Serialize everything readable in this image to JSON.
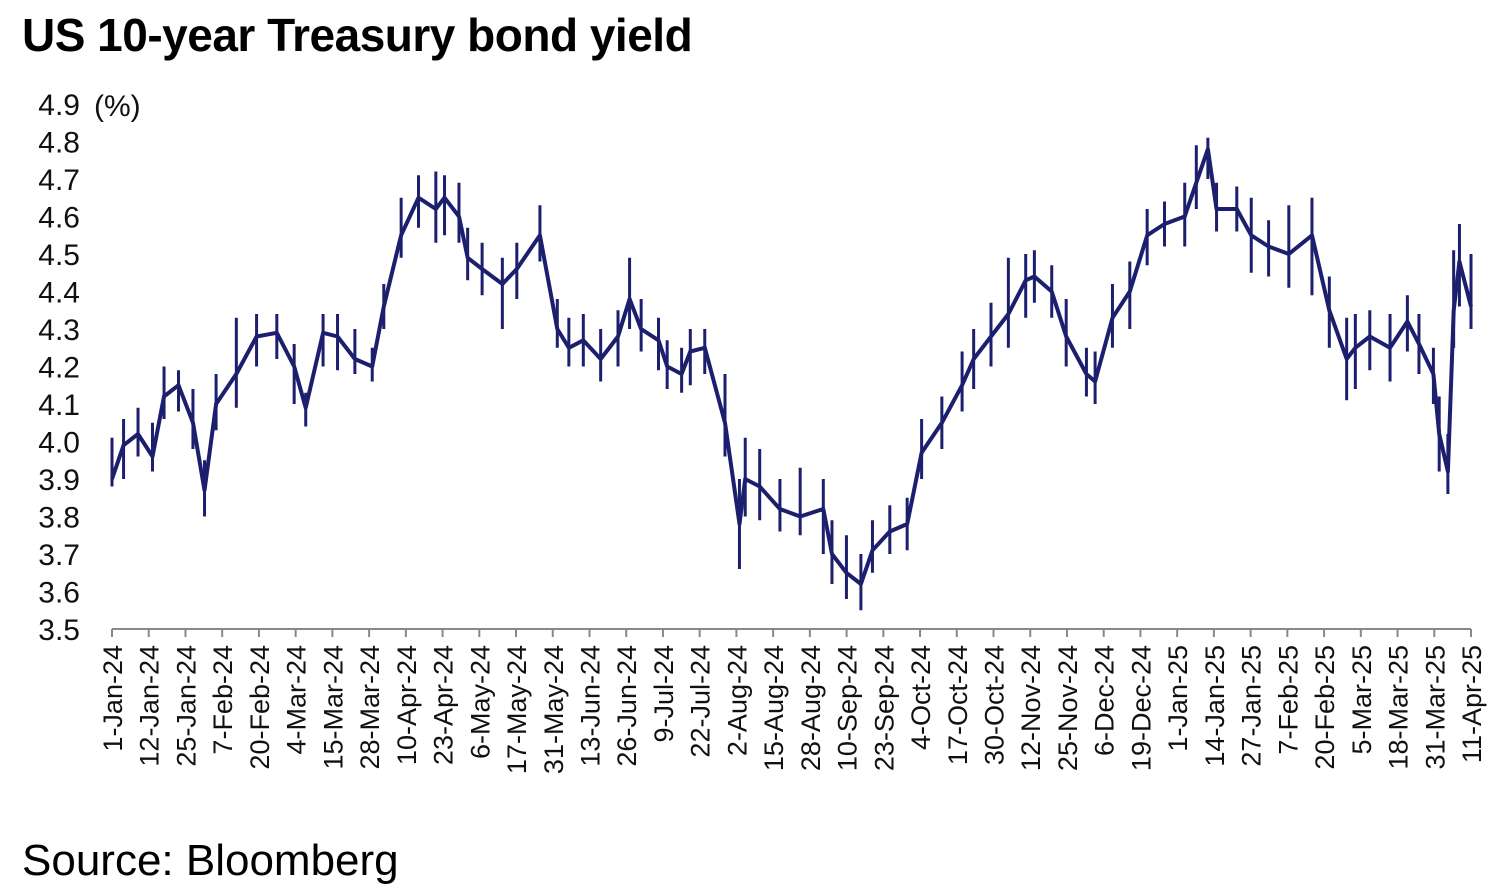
{
  "title": "US 10-year Treasury bond yield",
  "source": "Source: Bloomberg",
  "chart_data": {
    "type": "line",
    "style": "hi-lo daily bars",
    "title": "US 10-year Treasury bond yield",
    "ylabel": "(%)",
    "xlabel": "",
    "ylim": [
      3.5,
      4.9
    ],
    "yticks": [
      "3.5",
      "3.6",
      "3.7",
      "3.8",
      "3.9",
      "4.0",
      "4.1",
      "4.2",
      "4.3",
      "4.4",
      "4.5",
      "4.6",
      "4.7",
      "4.8",
      "4.9"
    ],
    "xlim": [
      "2024-01-01",
      "2025-04-15"
    ],
    "xtick_labels": [
      "1-Jan-24",
      "12-Jan-24",
      "25-Jan-24",
      "7-Feb-24",
      "20-Feb-24",
      "4-Mar-24",
      "15-Mar-24",
      "28-Mar-24",
      "10-Apr-24",
      "23-Apr-24",
      "6-May-24",
      "17-May-24",
      "31-May-24",
      "13-Jun-24",
      "26-Jun-24",
      "9-Jul-24",
      "22-Jul-24",
      "2-Aug-24",
      "15-Aug-24",
      "28-Aug-24",
      "10-Sep-24",
      "23-Sep-24",
      "4-Oct-24",
      "17-Oct-24",
      "30-Oct-24",
      "12-Nov-24",
      "25-Nov-24",
      "6-Dec-24",
      "19-Dec-24",
      "1-Jan-25",
      "14-Jan-25",
      "27-Jan-25",
      "7-Feb-25",
      "20-Feb-25",
      "5-Mar-25",
      "18-Mar-25",
      "31-Mar-25",
      "11-Apr-25"
    ],
    "grid": false,
    "legend": "none",
    "colors": {
      "series": "#1c1f6e",
      "axis": "#888888",
      "text": "#111111"
    },
    "series": [
      {
        "x": [
          "2024-01-01",
          "2024-01-05",
          "2024-01-10",
          "2024-01-15",
          "2024-01-19",
          "2024-01-24",
          "2024-01-29",
          "2024-02-02",
          "2024-02-06",
          "2024-02-13",
          "2024-02-20",
          "2024-02-27",
          "2024-03-04",
          "2024-03-08",
          "2024-03-14",
          "2024-03-19",
          "2024-03-25",
          "2024-03-31",
          "2024-04-04",
          "2024-04-10",
          "2024-04-16",
          "2024-04-22",
          "2024-04-25",
          "2024-04-30",
          "2024-05-03",
          "2024-05-08",
          "2024-05-15",
          "2024-05-20",
          "2024-05-28",
          "2024-06-03",
          "2024-06-07",
          "2024-06-12",
          "2024-06-18",
          "2024-06-24",
          "2024-06-28",
          "2024-07-02",
          "2024-07-08",
          "2024-07-11",
          "2024-07-16",
          "2024-07-19",
          "2024-07-24",
          "2024-07-31",
          "2024-08-05",
          "2024-08-07",
          "2024-08-12",
          "2024-08-19",
          "2024-08-26",
          "2024-09-03",
          "2024-09-06",
          "2024-09-11",
          "2024-09-16",
          "2024-09-20",
          "2024-09-26",
          "2024-10-02",
          "2024-10-07",
          "2024-10-14",
          "2024-10-21",
          "2024-10-25",
          "2024-10-31",
          "2024-11-06",
          "2024-11-12",
          "2024-11-15",
          "2024-11-21",
          "2024-11-26",
          "2024-12-03",
          "2024-12-06",
          "2024-12-12",
          "2024-12-18",
          "2024-12-24",
          "2024-12-30",
          "2025-01-06",
          "2025-01-10",
          "2025-01-14",
          "2025-01-17",
          "2025-01-24",
          "2025-01-29",
          "2025-02-04",
          "2025-02-11",
          "2025-02-19",
          "2025-02-25",
          "2025-03-03",
          "2025-03-06",
          "2025-03-11",
          "2025-03-18",
          "2025-03-24",
          "2025-03-28",
          "2025-04-02",
          "2025-04-04",
          "2025-04-07",
          "2025-04-09",
          "2025-04-11",
          "2025-04-15"
        ],
        "values": [
          3.9,
          3.99,
          4.02,
          3.96,
          4.12,
          4.15,
          4.05,
          3.87,
          4.1,
          4.18,
          4.28,
          4.29,
          4.2,
          4.09,
          4.29,
          4.28,
          4.22,
          4.2,
          4.36,
          4.55,
          4.65,
          4.62,
          4.65,
          4.6,
          4.49,
          4.46,
          4.42,
          4.46,
          4.55,
          4.3,
          4.25,
          4.27,
          4.22,
          4.28,
          4.38,
          4.3,
          4.27,
          4.2,
          4.18,
          4.24,
          4.25,
          4.05,
          3.78,
          3.9,
          3.88,
          3.82,
          3.8,
          3.82,
          3.7,
          3.65,
          3.62,
          3.71,
          3.76,
          3.78,
          3.97,
          4.05,
          4.15,
          4.22,
          4.28,
          4.34,
          4.43,
          4.44,
          4.4,
          4.28,
          4.18,
          4.16,
          4.33,
          4.4,
          4.55,
          4.58,
          4.6,
          4.69,
          4.78,
          4.62,
          4.62,
          4.55,
          4.52,
          4.5,
          4.55,
          4.35,
          4.22,
          4.25,
          4.28,
          4.25,
          4.32,
          4.26,
          4.18,
          4.02,
          3.92,
          4.35,
          4.48,
          4.36
        ],
        "high": [
          4.01,
          4.06,
          4.09,
          4.05,
          4.2,
          4.19,
          4.14,
          3.95,
          4.18,
          4.33,
          4.34,
          4.34,
          4.26,
          4.13,
          4.34,
          4.34,
          4.3,
          4.25,
          4.42,
          4.65,
          4.71,
          4.72,
          4.71,
          4.69,
          4.57,
          4.53,
          4.49,
          4.53,
          4.63,
          4.38,
          4.33,
          4.34,
          4.3,
          4.35,
          4.49,
          4.38,
          4.33,
          4.27,
          4.25,
          4.3,
          4.3,
          4.18,
          3.9,
          4.01,
          3.98,
          3.9,
          3.93,
          3.9,
          3.79,
          3.75,
          3.7,
          3.79,
          3.83,
          3.85,
          4.06,
          4.12,
          4.24,
          4.3,
          4.37,
          4.49,
          4.5,
          4.51,
          4.47,
          4.38,
          4.25,
          4.24,
          4.42,
          4.48,
          4.62,
          4.64,
          4.69,
          4.79,
          4.81,
          4.69,
          4.68,
          4.65,
          4.59,
          4.63,
          4.65,
          4.44,
          4.33,
          4.34,
          4.35,
          4.34,
          4.39,
          4.34,
          4.25,
          4.12,
          4.02,
          4.51,
          4.58,
          4.5
        ],
        "low": [
          3.88,
          3.9,
          3.96,
          3.92,
          4.06,
          4.08,
          3.98,
          3.8,
          4.03,
          4.09,
          4.2,
          4.22,
          4.1,
          4.04,
          4.2,
          4.19,
          4.18,
          4.16,
          4.3,
          4.49,
          4.57,
          4.53,
          4.55,
          4.53,
          4.43,
          4.39,
          4.3,
          4.38,
          4.48,
          4.25,
          4.2,
          4.2,
          4.16,
          4.2,
          4.3,
          4.24,
          4.19,
          4.14,
          4.13,
          4.15,
          4.18,
          3.96,
          3.66,
          3.8,
          3.79,
          3.76,
          3.75,
          3.7,
          3.62,
          3.58,
          3.55,
          3.65,
          3.7,
          3.71,
          3.9,
          3.98,
          4.08,
          4.14,
          4.2,
          4.25,
          4.33,
          4.37,
          4.33,
          4.2,
          4.12,
          4.1,
          4.25,
          4.3,
          4.47,
          4.52,
          4.52,
          4.62,
          4.7,
          4.56,
          4.56,
          4.45,
          4.44,
          4.41,
          4.39,
          4.25,
          4.11,
          4.14,
          4.19,
          4.16,
          4.24,
          4.18,
          4.1,
          3.92,
          3.86,
          4.25,
          4.36,
          4.3
        ]
      }
    ]
  }
}
